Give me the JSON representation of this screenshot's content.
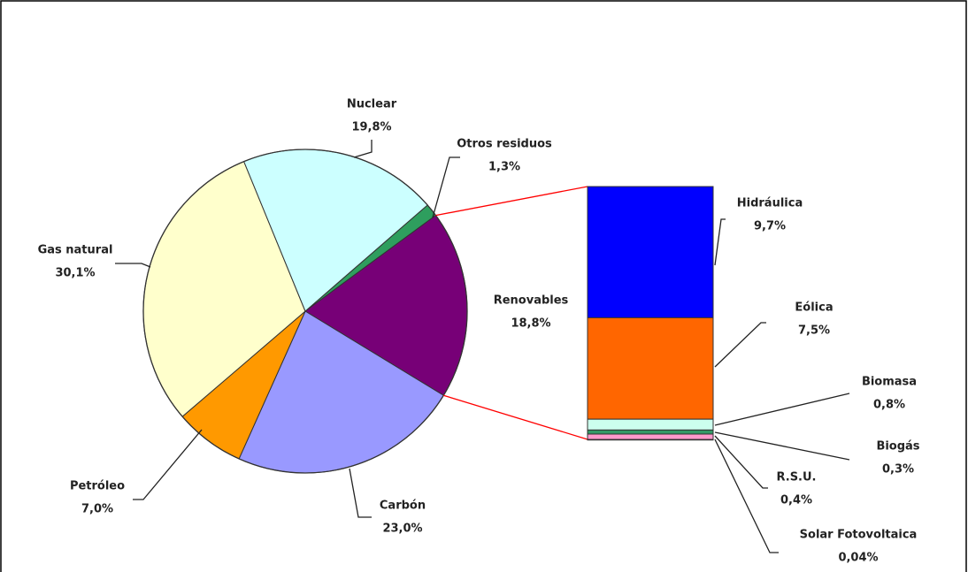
{
  "chart_data": [
    {
      "type": "pie",
      "categories": [
        "Otros residuos",
        "Renovables",
        "Carbón",
        "Petróleo",
        "Gas natural",
        "Nuclear"
      ],
      "values": [
        1.3,
        18.8,
        23.0,
        7.0,
        30.1,
        19.8
      ],
      "value_labels": [
        "1,3%",
        "18,8%",
        "23,0%",
        "7,0%",
        "30,1%",
        "19,8%"
      ],
      "colors": [
        "#2e9e5e",
        "#770077",
        "#9999ff",
        "#ff9900",
        "#ffffcc",
        "#ccffff"
      ]
    },
    {
      "type": "stacked-bar",
      "categories": [
        "Hidráulica",
        "Eólica",
        "Biomasa",
        "Biogás",
        "R.S.U.",
        "Solar Fotovoltaica"
      ],
      "values": [
        9.7,
        7.5,
        0.8,
        0.3,
        0.4,
        0.04
      ],
      "value_labels": [
        "9,7%",
        "7,5%",
        "0,8%",
        "0,3%",
        "0,4%",
        "0,04%"
      ],
      "colors": [
        "#0000ff",
        "#ff6600",
        "#ccffee",
        "#339966",
        "#ff99cc",
        "#660066"
      ]
    }
  ]
}
